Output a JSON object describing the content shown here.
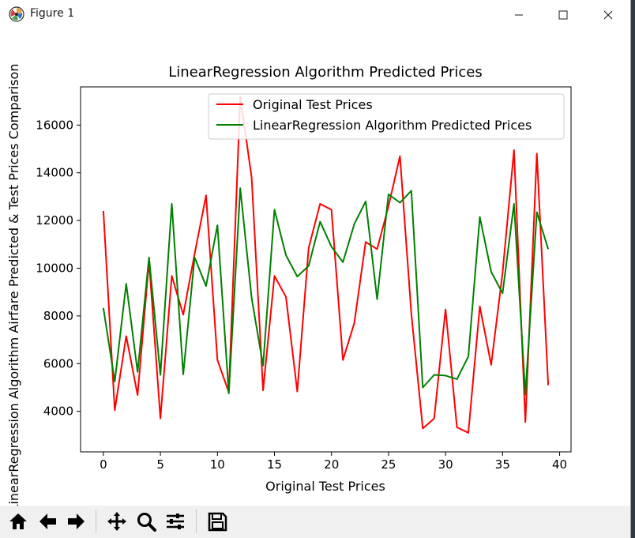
{
  "window": {
    "title": "Figure 1",
    "controls": {
      "minimize": "—",
      "maximize": "☐",
      "close": "✕"
    }
  },
  "toolbar": {
    "buttons": [
      "home-icon",
      "back-icon",
      "forward-icon",
      "pan-icon",
      "zoom-icon",
      "configure-subplots-icon",
      "save-icon"
    ]
  },
  "chart_data": {
    "type": "line",
    "title": "LinearRegression Algorithm Predicted Prices",
    "xlabel": "Original Test Prices",
    "ylabel": "LinearRegression Algorithm Airfare Predicted & Test Prices Comparison",
    "xlim": [
      -2,
      41
    ],
    "ylim": [
      2300,
      17600
    ],
    "xticks": [
      0,
      5,
      10,
      15,
      20,
      25,
      30,
      35,
      40
    ],
    "yticks": [
      4000,
      6000,
      8000,
      10000,
      12000,
      14000,
      16000
    ],
    "legend_position": "upper right",
    "x": [
      0,
      1,
      2,
      3,
      4,
      5,
      6,
      7,
      8,
      9,
      10,
      11,
      12,
      13,
      14,
      15,
      16,
      17,
      18,
      19,
      20,
      21,
      22,
      23,
      24,
      25,
      26,
      27,
      28,
      29,
      30,
      31,
      32,
      33,
      34,
      35,
      36,
      37,
      38,
      39
    ],
    "series": [
      {
        "name": "Original Test Prices",
        "color": "#ff0000",
        "values": [
          12400,
          4050,
          7150,
          4680,
          10300,
          3700,
          9680,
          8050,
          10600,
          13050,
          6150,
          4800,
          17200,
          13800,
          4880,
          9680,
          8800,
          4830,
          10850,
          12700,
          12450,
          6150,
          7700,
          11100,
          10800,
          12600,
          14700,
          8100,
          3280,
          3700,
          8270,
          3330,
          3100,
          8400,
          5950,
          9800,
          14950,
          3550,
          14800,
          5100
        ]
      },
      {
        "name": "LinearRegression Algorithm Predicted Prices",
        "color": "#008000",
        "values": [
          8330,
          5250,
          9350,
          5650,
          10450,
          5530,
          12700,
          5550,
          10450,
          9250,
          11800,
          4750,
          13350,
          8750,
          5920,
          12450,
          10550,
          9650,
          10100,
          11950,
          10900,
          10250,
          11850,
          12800,
          8700,
          13100,
          12750,
          13250,
          5000,
          5530,
          5500,
          5350,
          6300,
          12150,
          9850,
          8950,
          12700,
          4700,
          12350,
          10800
        ]
      }
    ]
  }
}
